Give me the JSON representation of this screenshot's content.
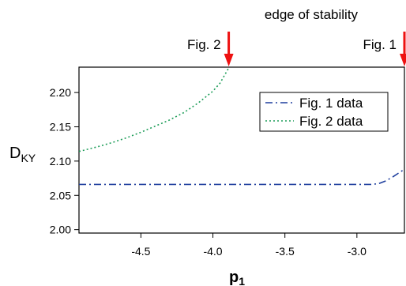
{
  "chart_data": {
    "type": "line",
    "title": "edge of stability",
    "xlabel": "p",
    "xlabel_sub": "1",
    "ylabel": "D",
    "ylabel_sub": "KY",
    "xlim": [
      -4.93,
      -2.67
    ],
    "ylim": [
      1.995,
      2.237
    ],
    "xticks": [
      -4.5,
      -4.0,
      -3.5,
      -3.0
    ],
    "xtick_labels": [
      "-4.5",
      "-4.0",
      "-3.5",
      "-3.0"
    ],
    "yticks": [
      2.0,
      2.05,
      2.1,
      2.15,
      2.2
    ],
    "ytick_labels": [
      "2.00",
      "2.05",
      "2.10",
      "2.15",
      "2.20"
    ],
    "legend_position": "top-right",
    "series": [
      {
        "name": "Fig. 1 data",
        "color": "#1f3f9e",
        "dash": "dashdot",
        "x": [
          -4.93,
          -4.5,
          -4.0,
          -3.5,
          -3.0,
          -2.9,
          -2.85,
          -2.8,
          -2.75,
          -2.7,
          -2.67
        ],
        "y": [
          2.066,
          2.066,
          2.066,
          2.066,
          2.066,
          2.066,
          2.067,
          2.071,
          2.077,
          2.084,
          2.088
        ]
      },
      {
        "name": "Fig. 2 data",
        "color": "#1f9e5a",
        "dash": "dotted",
        "x": [
          -4.93,
          -4.8,
          -4.7,
          -4.6,
          -4.5,
          -4.4,
          -4.3,
          -4.2,
          -4.1,
          -4.0,
          -3.95,
          -3.89
        ],
        "y": [
          2.114,
          2.121,
          2.127,
          2.134,
          2.142,
          2.151,
          2.16,
          2.171,
          2.185,
          2.202,
          2.214,
          2.236
        ]
      }
    ],
    "annotations": [
      {
        "text": "Fig. 2",
        "x": -3.89,
        "arrow_color": "#ee1111"
      },
      {
        "text": "Fig. 1",
        "x": -2.67,
        "arrow_color": "#ee1111"
      }
    ]
  }
}
